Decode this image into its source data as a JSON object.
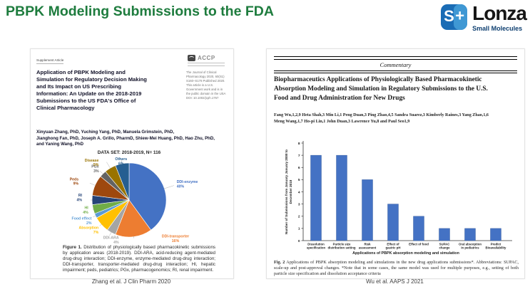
{
  "slide": {
    "title": "PBPK Modeling Submissions to the FDA"
  },
  "logo": {
    "icon_letter": "S",
    "icon_plus": "+",
    "brand": "Lonza",
    "tagline": "Small Molecules"
  },
  "left_paper": {
    "article_type": "Supplement Article",
    "publisher": "ACCP",
    "title": "Application of PBPK Modeling and Simulation for Regulatory Decision Making and Its Impact on US Prescribing Information: An Update on the 2018-2019 Submissions to the US FDA's Office of Clinical Pharmacology",
    "title_lines": [
      "Application of PBPK Modeling and",
      "Simulation for Regulatory Decision Making",
      "and Its Impact on US Prescribing",
      "Information: An Update on the 2018-2019",
      "Submissions to the US FDA's Office of",
      "Clinical Pharmacology"
    ],
    "journal_info": "The Journal of Clinical Pharmacology 2020, 60(S1) S160–S178 Published 2020. This article is a U.S. Government work and is in the public domain in the USA DOI: 10.1002/jcph.1767",
    "authors": "Xinyuan Zhang, PhD, Yuching Yang, PhD, Manuela Grimstein, PhD, Jianghong Fan, PhD, Joseph A. Grillo, PharmD, Shiew-Mei Huang, PhD, Hao Zhu, PhD, and Yaning Wang, PhD",
    "authors_lines": [
      "Xinyuan Zhang, PhD, Yuching Yang, PhD, Manuela Grimstein, PhD,",
      "Jianghong Fan, PhD, Joseph A. Grillo, PharmD, Shiew-Mei Huang, PhD, Hao Zhu, PhD,",
      "and Yaning Wang, PhD"
    ],
    "caption_label": "Figure 1.",
    "caption_text": "Distribution of physiologically based pharmacokinetic submissions by application areas (2018-2019). DDI-ARA, acid-reducing agent-mediated drug-drug interaction; DDI-enzyme, enzyme-mediated drug-drug interaction; DDI-transporter, transporter-mediated drug-drug interaction; HI, hepatic impairment; peds, pediatrics; PGx, pharmacogenomics; RI, renal impairment.",
    "citation": "Zhang et al. J Clin Pharm 2020"
  },
  "right_paper": {
    "section_header": "Commentary",
    "title": "Biopharmaceutics Applications of Physiologically Based Pharmacokinetic Absorption Modeling and Simulation in Regulatory Submissions to the U.S. Food and Drug Administration for New Drugs",
    "title_lines": [
      "Biopharmaceutics Applications of Physiologically Based Pharmacokinetic",
      "Absorption Modeling and Simulation in Regulatory Submissions to the U.S.",
      "Food and Drug Administration for New Drugs"
    ],
    "authors": "Fang Wu,1,2,9 Heta Shah,3 Min Li,1 Peng Duan,3 Ping Zhao,4,5 Sandra Suarez,3 Kimberly Raines,3 Yang Zhao,1,6 Meng Wang,1,7 Ho-pi Lin,1 John Duan,3 Lawrence Yu,8 and Paul Seo1,9",
    "authors_lines": [
      "Fang Wu,1,2,9 Heta Shah,3 Min Li,1 Peng Duan,3 Ping Zhao,4,5 Sandra Suarez,3 Kimberly Raines,3 Yang Zhao,1,6",
      "Meng Wang,1,7 Ho-pi Lin,1 John Duan,3 Lawrence Yu,8 and Paul Seo1,9"
    ],
    "caption_label": "Fig. 2",
    "caption_text": "Applications of PBPK absorption modeling and simulations in the new drug applications submissions*. Abbreviations: SUPAC, scale-up and post-approval changes. *Note that in some cases, the same model was used for multiple purposes, e.g., setting of both particle size specification and dissolution acceptance criteria",
    "citation": "Wu et al. AAPS J 2021"
  },
  "chart_data": [
    {
      "type": "pie",
      "title": "DATA SET: 2018-2019, N= 116",
      "labels": [
        "DDI-enzyme",
        "DDI-transporter",
        "DDI-ARA",
        "Absorption",
        "Food effect",
        "HI",
        "RI",
        "Peds",
        "PGx",
        "Disease",
        "Others"
      ],
      "values": [
        40,
        16,
        4,
        7,
        2,
        4,
        4,
        9,
        3,
        5,
        6
      ],
      "unit": "%",
      "colors": [
        "#4472C4",
        "#ED7D31",
        "#A5A5A5",
        "#FFC000",
        "#5B9BD5",
        "#70AD47",
        "#264478",
        "#9E480E",
        "#636363",
        "#997300",
        "#255E91"
      ],
      "legend": "none",
      "start_angle_deg": 0,
      "direction": "clockwise"
    },
    {
      "type": "bar",
      "categories": [
        "Dissolution specification",
        "Particle size distribution setting",
        "Risk assessment",
        "Effect of gastric pH",
        "Effect of food",
        "SUPAC change",
        "Oral absorption in pediatrics",
        "Predict Bioavailability"
      ],
      "categories_lines": [
        [
          "Dissolution",
          "specification"
        ],
        [
          "Particle size",
          "distribution setting"
        ],
        [
          "Risk",
          "assessment"
        ],
        [
          "Effect of",
          "gastric pH"
        ],
        [
          "Effect of food"
        ],
        [
          "SUPAC",
          "change"
        ],
        [
          "Oral absorption",
          "in pediatrics"
        ],
        [
          "Predict",
          "Bioavailability"
        ]
      ],
      "values": [
        7,
        7,
        5,
        3,
        2,
        1,
        1,
        1
      ],
      "ylabel": "Number of Submissions from January January 2008 to December 2018",
      "ylabel_lines": [
        "Number of Submissions from January January 2008 to",
        "December 2018"
      ],
      "xlabel": "Applications of PBPK absorption modeling and simulation",
      "ylim": [
        0,
        8
      ],
      "ytick_step": 1,
      "grid": false,
      "bar_color": "#4472C4",
      "legend": "none"
    }
  ]
}
